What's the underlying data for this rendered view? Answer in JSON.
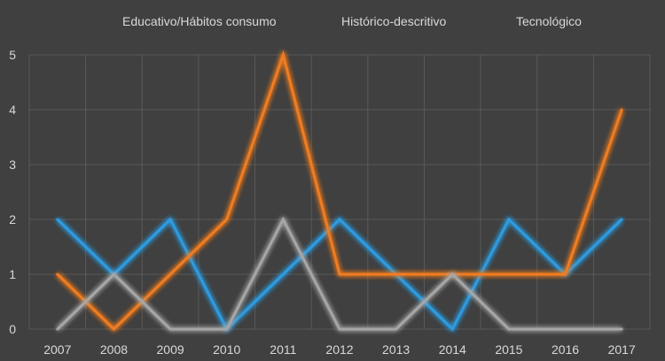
{
  "chart_data": {
    "type": "line",
    "title": "",
    "xlabel": "",
    "ylabel": "",
    "categories": [
      "2007",
      "2008",
      "2009",
      "2010",
      "2011",
      "2012",
      "2013",
      "2014",
      "2015",
      "2016",
      "2017"
    ],
    "ylim": [
      0,
      5
    ],
    "yticks": [
      "0",
      "1",
      "2",
      "3",
      "4",
      "5"
    ],
    "grid": true,
    "legend_position": "top",
    "series": [
      {
        "name": "Educativo/Hábitos consumo",
        "color": "#2e9be0",
        "values": [
          2,
          1,
          2,
          0,
          1,
          2,
          1,
          0,
          2,
          1,
          2
        ]
      },
      {
        "name": "Histórico-descritivo",
        "color": "#f07b22",
        "values": [
          1,
          0,
          1,
          2,
          5,
          1,
          1,
          1,
          1,
          1,
          4
        ]
      },
      {
        "name": "Tecnológico",
        "color": "#a6a6a6",
        "values": [
          0,
          1,
          0,
          0,
          2,
          0,
          0,
          1,
          0,
          0,
          0
        ]
      }
    ]
  }
}
